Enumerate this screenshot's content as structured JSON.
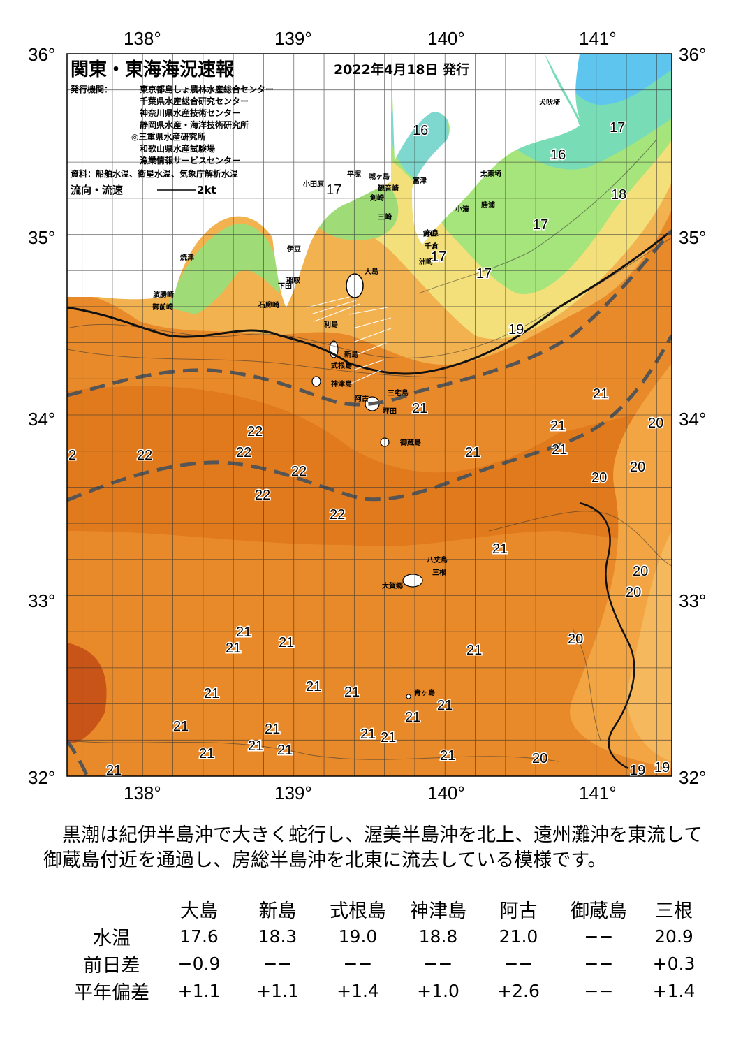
{
  "header": {
    "title": "関東・東海海況速報",
    "date": "2022年4月18日 発行",
    "issuer_label": "発行機関：",
    "issuers": [
      "東京都島しょ農林水産総合センター",
      "千葉県水産総合研究センター",
      "神奈川県水産技術センター",
      "静岡県水産・海洋技術研究所",
      "◎三重県水産研究所",
      "和歌山県水産試験場",
      "漁業情報サービスセンター"
    ],
    "source": "資料：船舶水温、衛星水温、気象庁解析水温",
    "flow_label": "流向・流速",
    "flow_scale": "2kt"
  },
  "axes": {
    "lon_labels": [
      "138°",
      "139°",
      "140°",
      "141°"
    ],
    "lat_labels": [
      "36°",
      "35°",
      "34°",
      "33°",
      "32°"
    ]
  },
  "place_names": [
    "犬吠埼",
    "太東埼",
    "勝浦",
    "小湊",
    "洲崎",
    "布良",
    "富津",
    "観音崎",
    "剣崎",
    "三崎",
    "城ヶ島",
    "館山",
    "千倉",
    "小田原",
    "平塚",
    "湘南",
    "伊豆",
    "稲取",
    "下田",
    "石廊崎",
    "御前崎",
    "焼津",
    "波勝崎",
    "大島",
    "利島",
    "新島",
    "式根島",
    "神津島",
    "三宅島",
    "阿古",
    "坪田",
    "御蔵島",
    "八丈島",
    "三根",
    "大賀郷",
    "青ヶ島"
  ],
  "temperature_labels": [
    "16",
    "17",
    "16",
    "17",
    "18",
    "17",
    "17",
    "17",
    "19",
    "21",
    "21",
    "21",
    "21",
    "20",
    "20",
    "20",
    "22",
    "22",
    "22",
    "22",
    "22",
    "22",
    "22",
    "21",
    "20",
    "20",
    "20",
    "21",
    "21",
    "21",
    "21",
    "21",
    "21",
    "21",
    "21",
    "21",
    "21",
    "21",
    "21",
    "21",
    "21",
    "21",
    "21",
    "21",
    "21",
    "20",
    "19",
    "19",
    "21",
    "2"
  ],
  "colors": {
    "warm_dark": "#cd5a12",
    "warm": "#e27a1f",
    "orange": "#f09a35",
    "light_orange": "#f7b65a",
    "yellow": "#f6dd7a",
    "pale_yellow": "#f2ec8a",
    "green": "#9fe37a",
    "teal": "#6fd9a0",
    "cyan": "#7fe0e8",
    "blue": "#4fb8f0",
    "kuroshio_line": "#555555"
  },
  "description": [
    "　黒潮は紀伊半島沖で大きく蛇行し、渥美半島沖を北上、遠州灘沖を東流して",
    "御蔵島付近を通過し、房総半島沖を北東に流去している模様です。"
  ],
  "table": {
    "columns": [
      "大島",
      "新島",
      "式根島",
      "神津島",
      "阿古",
      "御蔵島",
      "三根"
    ],
    "rows": [
      {
        "label": "水温",
        "values": [
          "17.6",
          "18.3",
          "19.0",
          "18.8",
          "21.0",
          "−−",
          "20.9"
        ]
      },
      {
        "label": "前日差",
        "values": [
          "−0.9",
          "−−",
          "−−",
          "−−",
          "−−",
          "−−",
          "+0.3"
        ]
      },
      {
        "label": "平年偏差",
        "values": [
          "+1.1",
          "+1.1",
          "+1.4",
          "+1.0",
          "+2.6",
          "−−",
          "+1.4"
        ]
      }
    ]
  }
}
